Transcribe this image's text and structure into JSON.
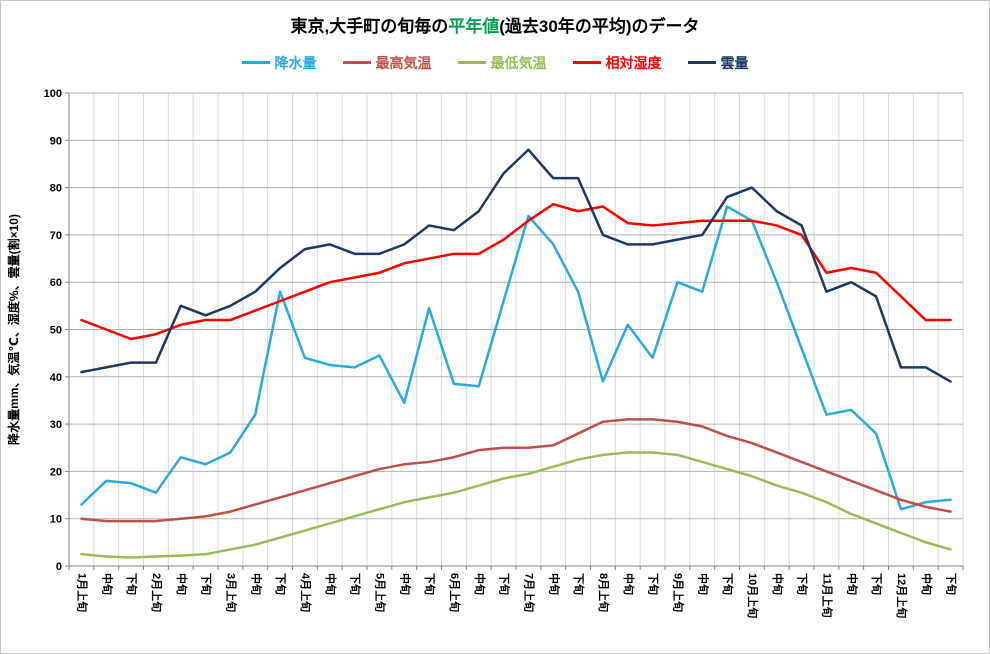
{
  "title": {
    "parts": [
      {
        "text": "東京,大手町の旬毎の",
        "color": "#000000"
      },
      {
        "text": "平年値",
        "color": "#00A050"
      },
      {
        "text": "(過去30年の平均)のデータ",
        "color": "#000000"
      }
    ]
  },
  "chart_data": {
    "type": "line",
    "ylabel": "降水量mm、気温℃、湿度%、雲量(割×10)",
    "ylim": [
      0,
      100
    ],
    "y_tick_step": 10,
    "y_ticks": [
      "0",
      "10",
      "20",
      "30",
      "40",
      "50",
      "60",
      "70",
      "80",
      "90",
      "100"
    ],
    "grid": true,
    "legend_position": "top",
    "categories": [
      "1月上旬",
      "中旬",
      "下旬",
      "2月上旬",
      "中旬",
      "下旬",
      "3月上旬",
      "中旬",
      "下旬",
      "4月上旬",
      "中旬",
      "下旬",
      "5月上旬",
      "中旬",
      "下旬",
      "6月上旬",
      "中旬",
      "下旬",
      "7月上旬",
      "中旬",
      "下旬",
      "8月上旬",
      "中旬",
      "下旬",
      "9月上旬",
      "中旬",
      "下旬",
      "10月上旬",
      "中旬",
      "下旬",
      "11月上旬",
      "中旬",
      "下旬",
      "12月上旬",
      "中旬",
      "下旬"
    ],
    "series": [
      {
        "name": "降水量",
        "key": "precipitation",
        "color": "#2DA9E1",
        "values": [
          13,
          18,
          17.5,
          15.5,
          23,
          21.5,
          24,
          32,
          58,
          44,
          42.5,
          42,
          44.5,
          34.5,
          54.5,
          38.5,
          38,
          56,
          74,
          68,
          58,
          39,
          51,
          44,
          60,
          58,
          76,
          73,
          60,
          46,
          32,
          33,
          28,
          12,
          13.5,
          14
        ]
      },
      {
        "name": "最高気温",
        "key": "max-temperature",
        "color": "#C0504D",
        "values": [
          10,
          9.5,
          9.5,
          9.5,
          10,
          10.5,
          11.5,
          13,
          14.5,
          16,
          17.5,
          19,
          20.5,
          21.5,
          22,
          23,
          24.5,
          25,
          25,
          25.5,
          28,
          30.5,
          31,
          31,
          30.5,
          29.5,
          27.5,
          26,
          24,
          22,
          20,
          18,
          16,
          14,
          12.5,
          11.5
        ]
      },
      {
        "name": "最低気温",
        "key": "min-temperature",
        "color": "#9BBB59",
        "values": [
          2.5,
          2,
          1.8,
          2,
          2.2,
          2.5,
          3.5,
          4.5,
          6,
          7.5,
          9,
          10.5,
          12,
          13.5,
          14.5,
          15.5,
          17,
          18.5,
          19.5,
          21,
          22.5,
          23.5,
          24,
          24,
          23.5,
          22,
          20.5,
          19,
          17,
          15.5,
          13.5,
          11,
          9,
          7,
          5,
          3.5
        ]
      },
      {
        "name": "相対湿度",
        "key": "relative-humidity",
        "color": "#FF0000",
        "values": [
          52,
          50,
          48,
          49,
          51,
          52,
          52,
          54,
          56,
          58,
          60,
          61,
          62,
          64,
          65,
          66,
          66,
          69,
          73,
          76.5,
          75,
          76,
          72.5,
          72,
          72.5,
          73,
          73,
          73,
          72,
          70,
          62,
          63,
          62,
          57,
          52,
          52
        ]
      },
      {
        "name": "雲量",
        "key": "cloud-cover",
        "color": "#1F3864",
        "values": [
          41,
          42,
          43,
          43,
          55,
          53,
          55,
          58,
          63,
          67,
          68,
          66,
          66,
          68,
          72,
          71,
          75,
          83,
          88,
          82,
          82,
          70,
          68,
          68,
          69,
          70,
          78,
          80,
          75,
          72,
          58,
          60,
          57,
          42,
          42,
          39
        ]
      }
    ]
  },
  "style": {
    "vertical_grid_color": "#d9d9d9",
    "horizontal_grid_color": "#b3b3b3",
    "axis_color": "#808080"
  }
}
